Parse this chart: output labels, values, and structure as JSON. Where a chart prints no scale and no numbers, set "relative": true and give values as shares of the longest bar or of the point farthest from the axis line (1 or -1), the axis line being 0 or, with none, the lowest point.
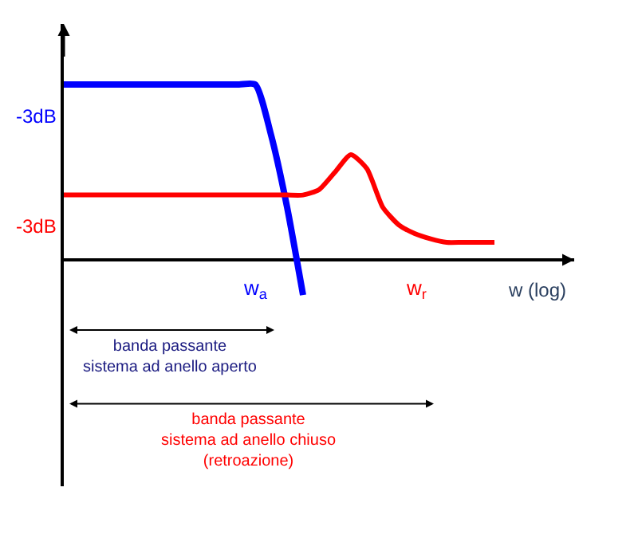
{
  "chart_data": {
    "type": "line",
    "relative": true,
    "xlabel": "w (log)",
    "categories": [
      null,
      null,
      null,
      null,
      null,
      null,
      null,
      null,
      null,
      null,
      null,
      null,
      "w$_{a}$",
      null,
      null,
      null,
      null,
      null,
      null,
      null,
      null,
      null,
      "w$_{r}$",
      null,
      null,
      null,
      null,
      null,
      null
    ],
    "series": [
      {
        "color": "#0000ff",
        "values": [
          1,
          1,
          1,
          1,
          1,
          1,
          1,
          1,
          1,
          1,
          1,
          1,
          1,
          0.71,
          0.3,
          -0.2,
          null,
          null,
          null,
          null,
          null,
          null,
          null,
          null,
          null,
          null,
          null,
          null,
          null
        ]
      },
      {
        "color": "#ff0000",
        "values": [
          0.37,
          0.37,
          0.37,
          0.37,
          0.37,
          0.37,
          0.37,
          0.37,
          0.37,
          0.37,
          0.37,
          0.37,
          0.37,
          0.37,
          0.37,
          0.37,
          0.4,
          0.5,
          0.6,
          0.52,
          0.3,
          0.2,
          0.15,
          0.12,
          0.1,
          0.1,
          0.1,
          0.1,
          null
        ]
      }
    ],
    "annotations": [
      "-3dB",
      "-3dB",
      "banda passante\nsistema ad anello aperto",
      "banda passante\nsistema ad anello chiuso\n(retroazione)"
    ],
    "marker": "none",
    "line_style": "solid"
  }
}
